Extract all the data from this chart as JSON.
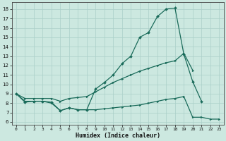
{
  "xlabel": "Humidex (Indice chaleur)",
  "ylabel": "",
  "bg_color": "#cce8e0",
  "line_color": "#1a6b5a",
  "grid_color": "#aacfc8",
  "xlim": [
    -0.5,
    23.5
  ],
  "ylim": [
    5.7,
    18.7
  ],
  "xticks": [
    0,
    1,
    2,
    3,
    4,
    5,
    6,
    7,
    8,
    9,
    10,
    11,
    12,
    13,
    14,
    15,
    16,
    17,
    18,
    19,
    20,
    21,
    22,
    23
  ],
  "yticks": [
    6,
    7,
    8,
    9,
    10,
    11,
    12,
    13,
    14,
    15,
    16,
    17,
    18
  ],
  "curve_max": {
    "x": [
      0,
      1,
      2,
      3,
      4,
      5,
      6,
      7,
      8,
      9,
      10,
      11,
      12,
      13,
      14,
      15,
      16,
      17,
      18,
      19,
      20,
      21,
      22
    ],
    "y": [
      9.0,
      8.1,
      8.2,
      8.2,
      8.1,
      7.2,
      7.5,
      7.3,
      7.3,
      9.5,
      10.2,
      11.0,
      12.2,
      13.0,
      15.0,
      15.5,
      17.2,
      18.0,
      18.1,
      13.2,
      10.3,
      8.2,
      null
    ]
  },
  "curve_mid": {
    "x": [
      0,
      1,
      2,
      3,
      4,
      5,
      6,
      7,
      8,
      9,
      10,
      11,
      12,
      13,
      14,
      15,
      16,
      17,
      18,
      19,
      20,
      21,
      22
    ],
    "y": [
      9.0,
      8.5,
      8.5,
      8.5,
      8.5,
      8.2,
      8.5,
      8.6,
      8.7,
      9.2,
      9.7,
      10.2,
      10.6,
      11.0,
      11.4,
      11.7,
      12.0,
      12.3,
      12.5,
      13.3,
      11.5,
      null,
      null
    ]
  },
  "curve_min": {
    "x": [
      0,
      1,
      2,
      3,
      4,
      5,
      6,
      7,
      8,
      9,
      10,
      11,
      12,
      13,
      14,
      15,
      16,
      17,
      18,
      19,
      20,
      21,
      22,
      23
    ],
    "y": [
      9.0,
      8.2,
      8.2,
      8.2,
      8.0,
      7.2,
      7.5,
      7.3,
      7.3,
      7.3,
      7.4,
      7.5,
      7.6,
      7.7,
      7.8,
      8.0,
      8.2,
      8.4,
      8.5,
      8.7,
      6.5,
      6.5,
      6.3,
      6.3
    ]
  }
}
